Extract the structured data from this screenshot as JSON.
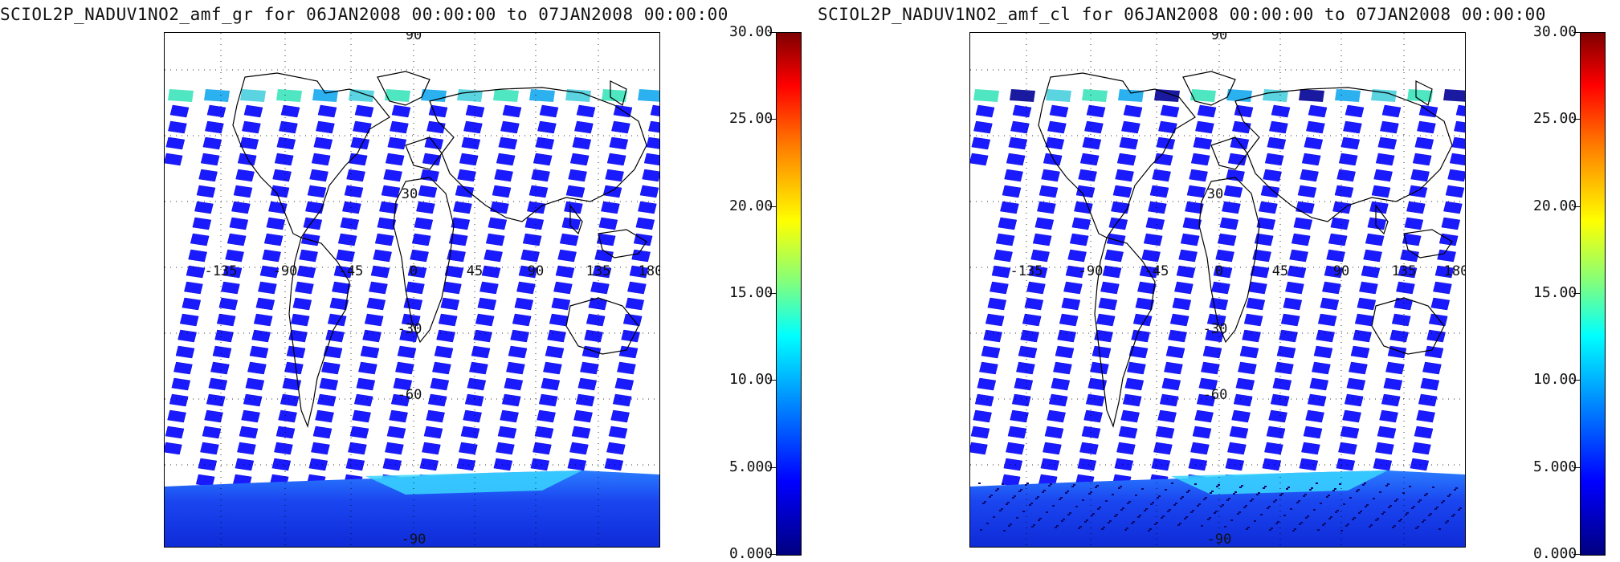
{
  "panels": [
    {
      "title": "SCIOL2P_NADUV1NO2_amf_gr for 06JAN2008 00:00:00 to 07JAN2008 00:00:00",
      "variant": "gr"
    },
    {
      "title": "SCIOL2P_NADUV1NO2_amf_cl for 06JAN2008 00:00:00 to 07JAN2008 00:00:00",
      "variant": "cl"
    }
  ],
  "map_labels": {
    "top_lat": "90",
    "bottom_lat": "-90",
    "lat_30": "30",
    "lat_m30": "-30",
    "lat_m60": "-60",
    "lon_m135": "-135",
    "lon_m90": "-90",
    "lon_m45": "-45",
    "lon_0": "0",
    "lon_45": "45",
    "lon_90": "90",
    "lon_135": "135",
    "lon_180": "180"
  },
  "colorbar": {
    "ticks": [
      "30.00",
      "25.00",
      "20.00",
      "15.00",
      "10.00",
      "5.000",
      "0.000"
    ],
    "min": 0,
    "max": 30,
    "colors": [
      "#00007f",
      "#0000ff",
      "#0080ff",
      "#00ffff",
      "#7fff7f",
      "#ffff00",
      "#ff8000",
      "#ff0000",
      "#7f0000"
    ]
  },
  "chart_data": [
    {
      "type": "heatmap",
      "title": "SCIOL2P_NADUV1NO2_amf_gr for 06JAN2008 00:00:00 to 07JAN2008 00:00:00",
      "colorbar_range": [
        0,
        30
      ],
      "colorbar_ticks": [
        0,
        5,
        10,
        15,
        20,
        25,
        30
      ],
      "lat_ticks": [
        -90,
        -60,
        -30,
        30,
        90
      ],
      "lon_ticks": [
        -135,
        -90,
        -45,
        0,
        45,
        90,
        135,
        180
      ]
    },
    {
      "type": "heatmap",
      "title": "SCIOL2P_NADUV1NO2_amf_cl for 06JAN2008 00:00:00 to 07JAN2008 00:00:00",
      "colorbar_range": [
        0,
        30
      ],
      "colorbar_ticks": [
        0,
        5,
        10,
        15,
        20,
        25,
        30
      ],
      "lat_ticks": [
        -90,
        -60,
        -30,
        30,
        90
      ],
      "lon_ticks": [
        -135,
        -90,
        -45,
        0,
        45,
        90,
        135,
        180
      ]
    }
  ]
}
